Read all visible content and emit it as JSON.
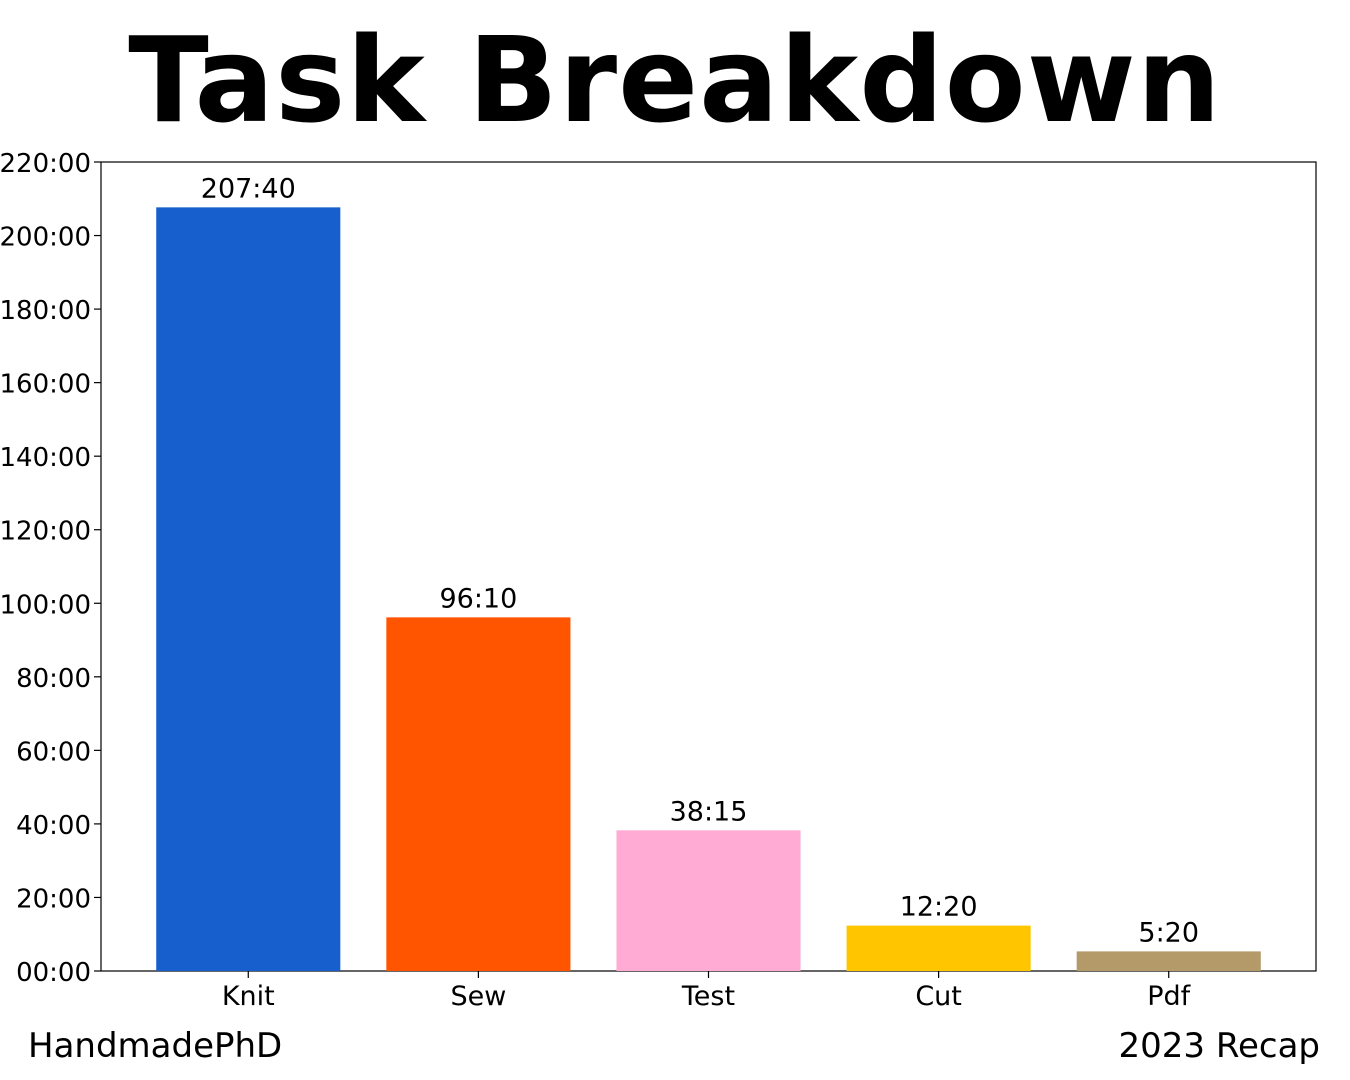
{
  "chart_data": {
    "type": "bar",
    "title": "Task Breakdown",
    "xlabel": "",
    "ylabel": "",
    "categories": [
      "Knit",
      "Sew",
      "Test",
      "Cut",
      "Pdf"
    ],
    "values": [
      207.667,
      96.167,
      38.25,
      12.333,
      5.333
    ],
    "value_labels": [
      "207:40",
      "96:10",
      "38:15",
      "12:20",
      "5:20"
    ],
    "bar_colors": [
      "#175fcd",
      "#ff5400",
      "#ffabd3",
      "#ffc600",
      "#b59a69"
    ],
    "ylim": [
      0,
      220
    ],
    "y_ticks": [
      {
        "value": 0,
        "label": "00:00"
      },
      {
        "value": 20,
        "label": "20:00"
      },
      {
        "value": 40,
        "label": "40:00"
      },
      {
        "value": 60,
        "label": "60:00"
      },
      {
        "value": 80,
        "label": "80:00"
      },
      {
        "value": 100,
        "label": "100:00"
      },
      {
        "value": 120,
        "label": "120:00"
      },
      {
        "value": 140,
        "label": "140:00"
      },
      {
        "value": 160,
        "label": "160:00"
      },
      {
        "value": 180,
        "label": "180:00"
      },
      {
        "value": 200,
        "label": "200:00"
      },
      {
        "value": 220,
        "label": "220:00"
      }
    ],
    "grid": false
  },
  "footer": {
    "left": "HandmadePhD",
    "right": "2023 Recap"
  }
}
